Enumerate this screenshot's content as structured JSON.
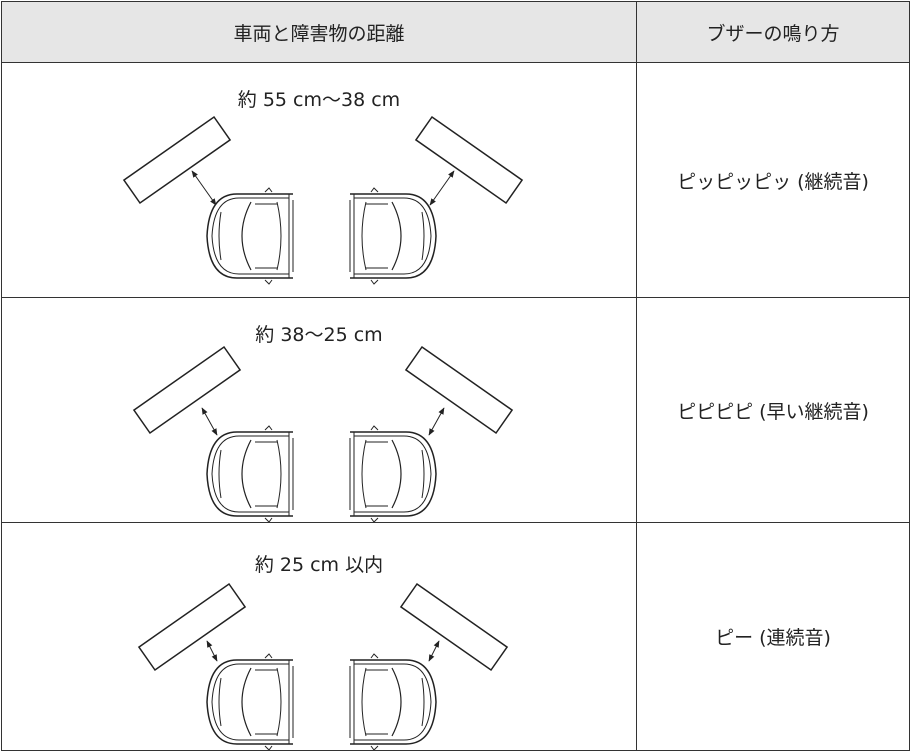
{
  "table": {
    "header": [
      "車両と障害物の距離",
      "ブザーの鳴り方"
    ],
    "rows": [
      [
        "約 55 cm〜38 cm",
        "ピッピッピッ (継続音)"
      ],
      [
        "約 38〜25 cm",
        "ピピピピ (早い継続音)"
      ],
      [
        "約 25 cm 以内",
        "ピー (連続音)"
      ]
    ]
  }
}
